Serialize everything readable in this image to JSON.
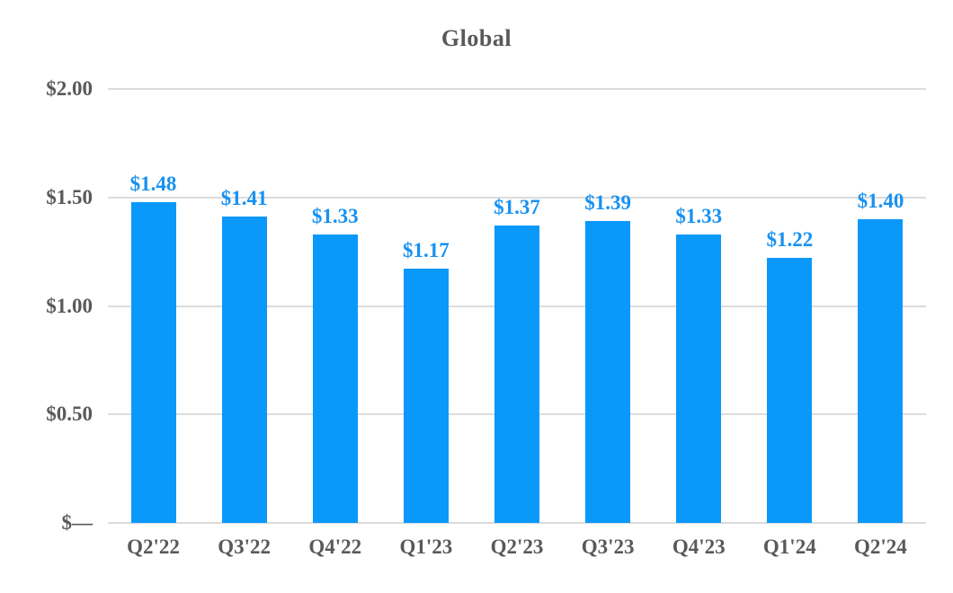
{
  "chart_data": {
    "type": "bar",
    "title": "Global",
    "categories": [
      "Q2'22",
      "Q3'22",
      "Q4'22",
      "Q1'23",
      "Q2'23",
      "Q3'23",
      "Q4'23",
      "Q1'24",
      "Q2'24"
    ],
    "values": [
      1.48,
      1.41,
      1.33,
      1.17,
      1.37,
      1.39,
      1.33,
      1.22,
      1.4
    ],
    "value_labels": [
      "$1.48",
      "$1.41",
      "$1.33",
      "$1.17",
      "$1.37",
      "$1.39",
      "$1.33",
      "$1.22",
      "$1.40"
    ],
    "y_ticks": [
      {
        "value": 2.0,
        "label": "$2.00"
      },
      {
        "value": 1.5,
        "label": "$1.50"
      },
      {
        "value": 1.0,
        "label": "$1.00"
      },
      {
        "value": 0.5,
        "label": "$0.50"
      },
      {
        "value": 0.0,
        "label": "$—"
      }
    ],
    "ylim": [
      0,
      2.0
    ],
    "xlabel": "",
    "ylabel": "",
    "grid": "horizontal",
    "legend_position": "none",
    "colors": {
      "bar": "#0B98FB",
      "value_label": "#1791F1",
      "axis_text": "#595959",
      "title_text": "#595959",
      "gridline": "#DCDCDC"
    }
  }
}
